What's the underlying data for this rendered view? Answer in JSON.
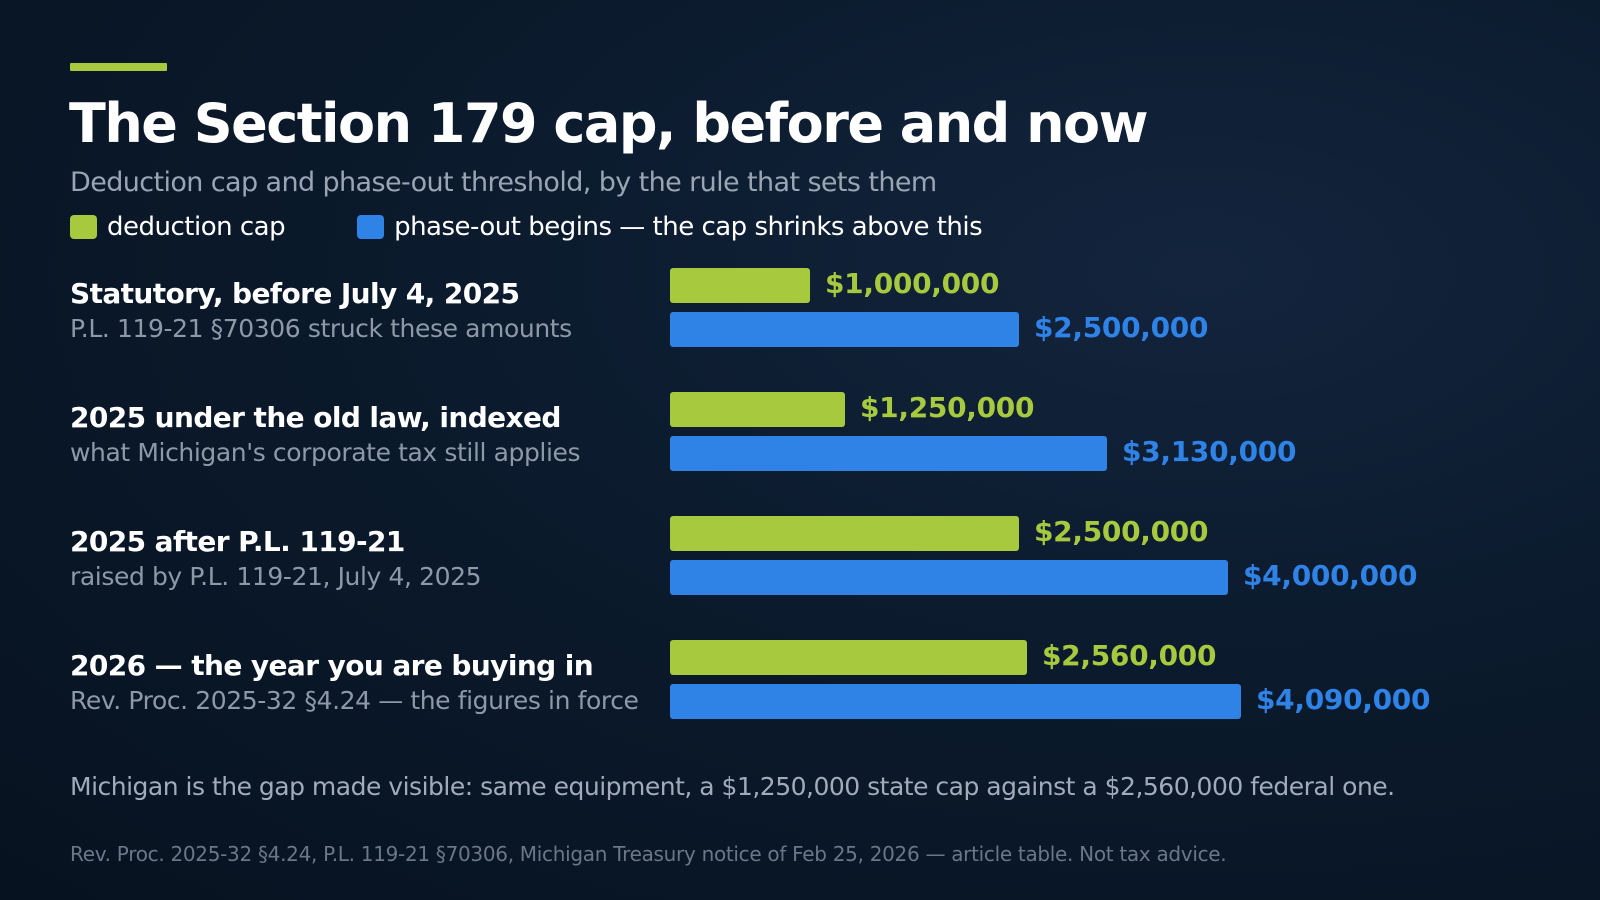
{
  "colors": {
    "accent": "#a6c93e",
    "cap": "#a6c93e",
    "phaseout": "#2f82e6",
    "background": "#0b1a2c"
  },
  "title": "The Section 179 cap, before and now",
  "subtitle": "Deduction cap and phase-out threshold, by the rule that sets them",
  "legend": {
    "cap_label": "deduction cap",
    "phaseout_label": "phase-out begins — the cap shrinks above this"
  },
  "chart_data": {
    "type": "bar",
    "orientation": "horizontal",
    "title": "The Section 179 cap, before and now",
    "subtitle": "Deduction cap and phase-out threshold, by the rule that sets them",
    "categories": [
      "Statutory, before July 4, 2025",
      "2025 under the old law, indexed",
      "2025 after P.L. 119-21",
      "2026 — the year you are buying in"
    ],
    "category_notes": [
      "P.L. 119-21 §70306 struck these amounts",
      "what Michigan's corporate tax still applies",
      "raised by P.L. 119-21, July 4, 2025",
      "Rev. Proc. 2025-32 §4.24 — the figures in force"
    ],
    "series": [
      {
        "name": "deduction cap",
        "values": [
          1000000,
          1250000,
          2500000,
          2560000
        ],
        "labels": [
          "$1,000,000",
          "$1,250,000",
          "$2,500,000",
          "$2,560,000"
        ]
      },
      {
        "name": "phase-out begins — the cap shrinks above this",
        "values": [
          2500000,
          3130000,
          4000000,
          4090000
        ],
        "labels": [
          "$2,500,000",
          "$3,130,000",
          "$4,000,000",
          "$4,090,000"
        ]
      }
    ],
    "xlim": [
      0,
      4090000
    ],
    "grid": false,
    "legend_position": "top-left"
  },
  "footnote": "Michigan is the gap made visible: same equipment, a $1,250,000 state cap against a $2,560,000 federal one.",
  "source": "Rev. Proc. 2025-32 §4.24, P.L. 119-21 §70306, Michigan Treasury notice of Feb 25, 2026 — article table. Not tax advice."
}
